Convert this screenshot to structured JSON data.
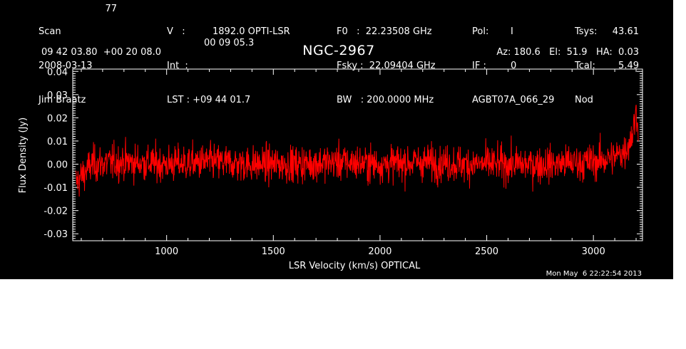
{
  "header": {
    "col1": [
      "Scan",
      "2008-03-13",
      "Jim Braatz"
    ],
    "scan_number": "77",
    "col2": [
      "V   :",
      "Int  :",
      "LST : +09 44 01.7"
    ],
    "col2_values": [
      "1892.0 OPTI-LSR",
      "00 09 05.3"
    ],
    "col3": [
      "F0   :  22.23508 GHz",
      "Fsky :  22.09404 GHz",
      "BW   : 200.0000 MHz"
    ],
    "col4": [
      "Pol:",
      "IF :",
      "AGBT07A_066_29"
    ],
    "col4_values": [
      "I",
      "0"
    ],
    "col5": [
      "Tsys:",
      "Tcal:",
      "Nod"
    ],
    "col5_values": [
      "43.61",
      "5.49"
    ],
    "coords": "09 42 03.80  +00 20 08.0",
    "source": "NGC-2967",
    "azelha": "Az: 180.6   El:  51.9   HA:  0.03",
    "timestamp": "Mon May  6 22:22:54 2013"
  },
  "chart_data": {
    "type": "line",
    "title": "NGC-2967",
    "xlabel": "LSR Velocity (km/s) OPTICAL",
    "ylabel": "Flux Density (Jy)",
    "xlim": [
      560,
      3230
    ],
    "ylim": [
      -0.033,
      0.041
    ],
    "xticks": [
      1000,
      1500,
      2000,
      2500,
      3000
    ],
    "xtick_labels": [
      "1000",
      "1500",
      "2000",
      "2500",
      "3000"
    ],
    "yticks": [
      -0.03,
      -0.02,
      -0.01,
      0.0,
      0.01,
      0.02,
      0.03,
      0.04
    ],
    "ytick_labels": [
      "-0.03",
      "-0.02",
      "-0.01",
      "0.00",
      "0.01",
      "0.02",
      "0.03",
      "0.04"
    ],
    "series": [
      {
        "color": "#ff0000",
        "noise_rms": 0.0065,
        "x": [
          575,
          650,
          800,
          1000,
          1200,
          1400,
          1600,
          1800,
          2000,
          2200,
          2400,
          2600,
          2800,
          3000,
          3100,
          3150,
          3180,
          3200,
          3210
        ],
        "values": [
          -0.008,
          0.0,
          0.001,
          0.0,
          0.001,
          0.0,
          0.0,
          0.001,
          0.0,
          0.001,
          0.0,
          0.0,
          0.0,
          0.001,
          0.003,
          0.006,
          0.012,
          0.022,
          0.018
        ]
      }
    ],
    "grid": false,
    "background": "#000000",
    "foreground": "#ffffff"
  }
}
